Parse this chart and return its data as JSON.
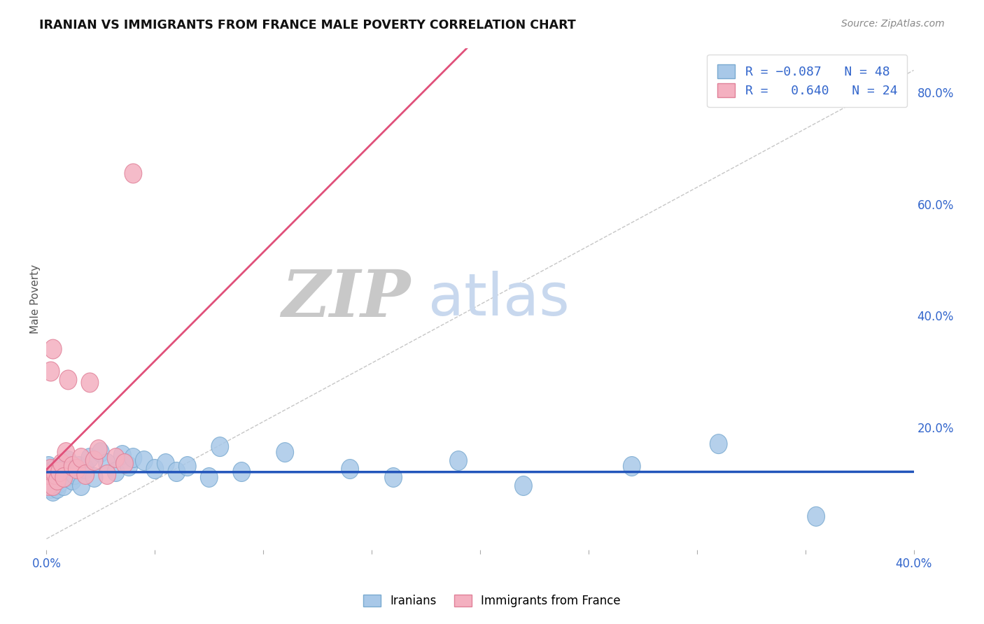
{
  "title": "IRANIAN VS IMMIGRANTS FROM FRANCE MALE POVERTY CORRELATION CHART",
  "source_text": "Source: ZipAtlas.com",
  "ylabel": "Male Poverty",
  "xlim": [
    0.0,
    0.4
  ],
  "ylim": [
    -0.02,
    0.88
  ],
  "background_color": "#ffffff",
  "grid_color": "#c8c8c8",
  "watermark_zip": "ZIP",
  "watermark_atlas": "atlas",
  "watermark_zip_color": "#c8c8c8",
  "watermark_atlas_color": "#c8d8ee",
  "iranians_color": "#a8c8e8",
  "iranians_edge_color": "#7aaad0",
  "france_color": "#f4b0c0",
  "france_edge_color": "#e08098",
  "iran_R": -0.087,
  "iran_N": 48,
  "france_R": 0.64,
  "france_N": 24,
  "legend_R_color": "#3366cc",
  "regression_line_iran_color": "#2255bb",
  "regression_line_france_color": "#e0507a",
  "diagonal_line_color": "#c0c0c0",
  "iranians_x": [
    0.001,
    0.001,
    0.001,
    0.002,
    0.002,
    0.002,
    0.003,
    0.003,
    0.003,
    0.004,
    0.004,
    0.005,
    0.005,
    0.006,
    0.007,
    0.008,
    0.009,
    0.01,
    0.011,
    0.012,
    0.013,
    0.015,
    0.016,
    0.018,
    0.02,
    0.022,
    0.025,
    0.028,
    0.032,
    0.035,
    0.038,
    0.04,
    0.045,
    0.05,
    0.055,
    0.06,
    0.065,
    0.075,
    0.08,
    0.09,
    0.11,
    0.14,
    0.16,
    0.19,
    0.22,
    0.27,
    0.31,
    0.355
  ],
  "iranians_y": [
    0.095,
    0.11,
    0.13,
    0.09,
    0.105,
    0.12,
    0.085,
    0.1,
    0.115,
    0.095,
    0.125,
    0.09,
    0.115,
    0.1,
    0.13,
    0.095,
    0.11,
    0.14,
    0.12,
    0.105,
    0.115,
    0.13,
    0.095,
    0.125,
    0.145,
    0.11,
    0.155,
    0.135,
    0.12,
    0.15,
    0.13,
    0.145,
    0.14,
    0.125,
    0.135,
    0.12,
    0.13,
    0.11,
    0.165,
    0.12,
    0.155,
    0.125,
    0.11,
    0.14,
    0.095,
    0.13,
    0.17,
    0.04
  ],
  "france_x": [
    0.001,
    0.001,
    0.002,
    0.002,
    0.003,
    0.003,
    0.004,
    0.005,
    0.006,
    0.007,
    0.008,
    0.009,
    0.01,
    0.012,
    0.014,
    0.016,
    0.018,
    0.02,
    0.022,
    0.024,
    0.028,
    0.032,
    0.036,
    0.04
  ],
  "france_y": [
    0.095,
    0.115,
    0.3,
    0.125,
    0.34,
    0.095,
    0.115,
    0.105,
    0.12,
    0.135,
    0.11,
    0.155,
    0.285,
    0.13,
    0.125,
    0.145,
    0.115,
    0.28,
    0.14,
    0.16,
    0.115,
    0.145,
    0.135,
    0.655
  ]
}
